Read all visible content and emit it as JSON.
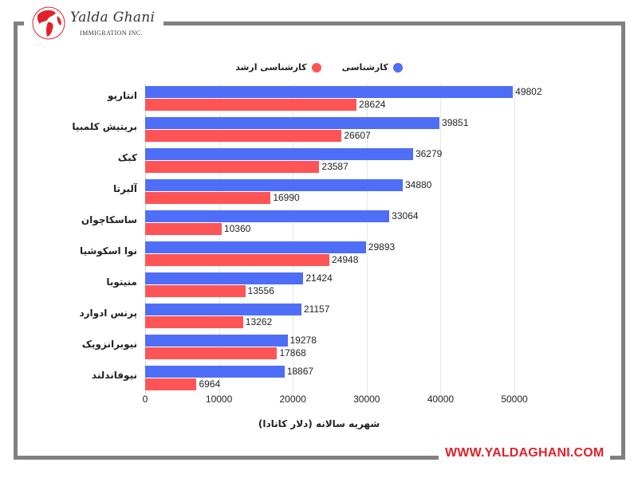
{
  "brand": {
    "name": "Yalda Ghani",
    "subtitle": "IMMIGRATION INC.",
    "website": "WWW.YALDAGHANI.COM",
    "accent_color": "#e3202a",
    "frame_color": "#808080"
  },
  "chart_data": {
    "type": "bar",
    "orientation": "horizontal",
    "title": "",
    "categories": [
      "انتاریو",
      "بریتیش کلمبیا",
      "کبک",
      "آلبرتا",
      "ساسکاچوان",
      "نوا اسکوشیا",
      "منیتوبا",
      "پرنس ادوارد",
      "نیوبرانزویک",
      "نیوفاندلند"
    ],
    "series": [
      {
        "name": "کارشناسی",
        "color": "#4f6ef7",
        "values": [
          49802,
          39851,
          36279,
          34880,
          33064,
          29893,
          21424,
          21157,
          19278,
          18867
        ]
      },
      {
        "name": "کارشناسی ارشد",
        "color": "#fe5456",
        "values": [
          28624,
          26607,
          23587,
          16990,
          10360,
          24948,
          13556,
          13262,
          17868,
          6964
        ]
      }
    ],
    "xlabel": "شهریه سالانه (دلار کانادا)",
    "ylabel": "",
    "xlim": [
      0,
      53000
    ],
    "x_ticks": [
      "0",
      "10000",
      "20000",
      "30000",
      "40000",
      "50000"
    ],
    "grid": true,
    "legend_position": "top",
    "data_labels": true
  },
  "legend": {
    "items": [
      {
        "label": "کارشناسی",
        "color": "#4f6ef7"
      },
      {
        "label": "کارشناسی ارشد",
        "color": "#fe5456"
      }
    ]
  }
}
